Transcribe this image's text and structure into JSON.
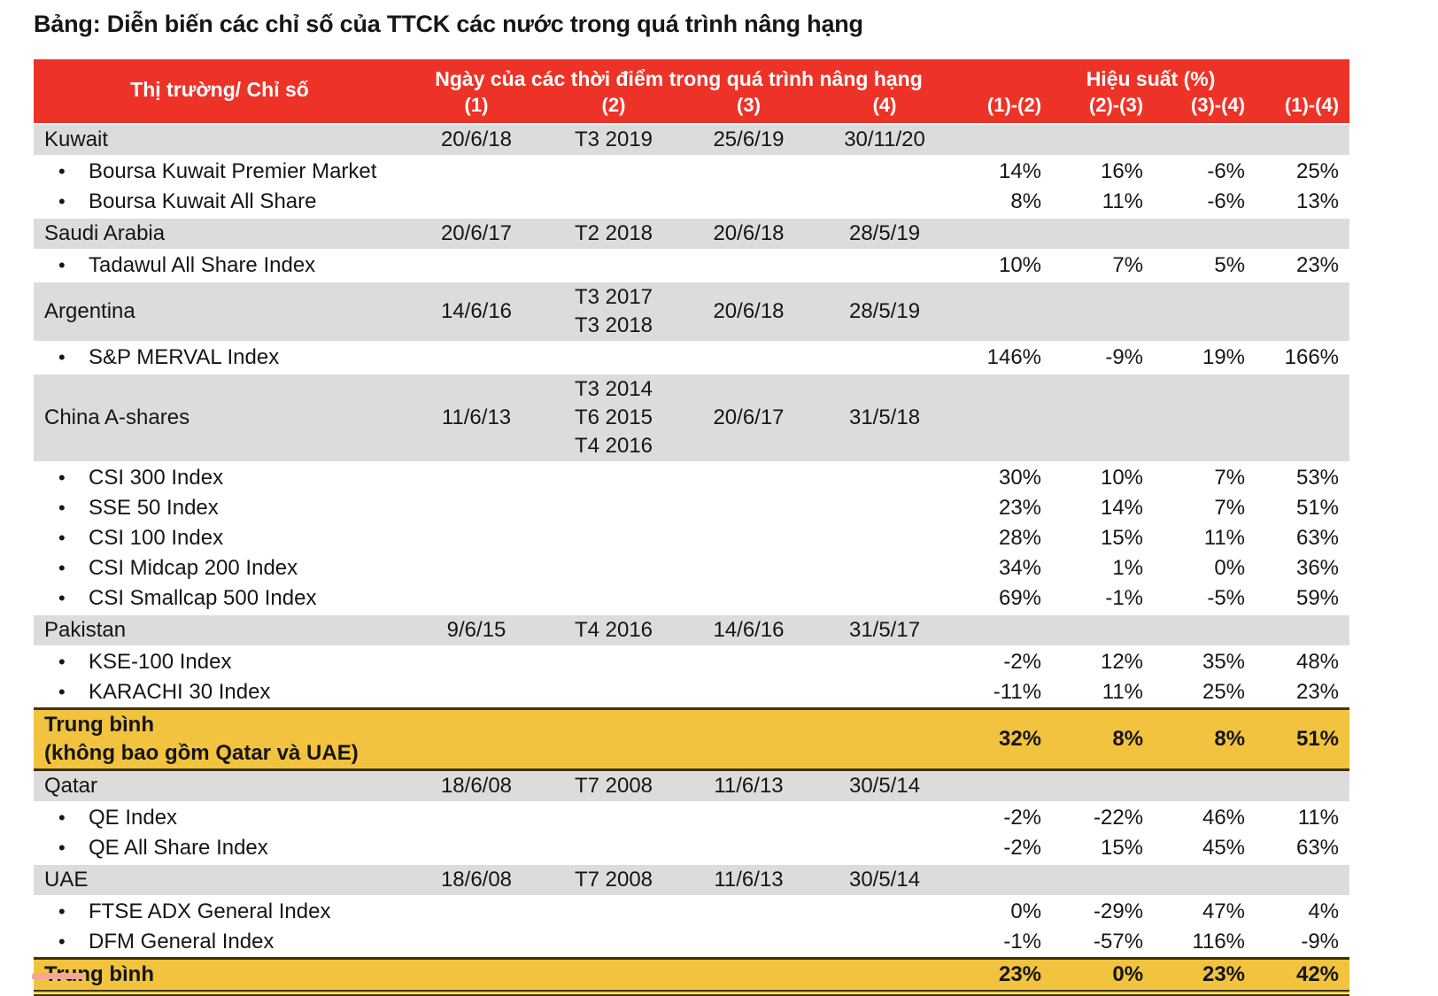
{
  "title": "Bảng: Diễn biến các chỉ số của TTCK các nước trong quá trình nâng hạng",
  "colors": {
    "header_bg": "#ED3328",
    "header_text": "#FFFFFF",
    "country_row_bg": "#DCDCDC",
    "summary_row_bg": "#F2C33E",
    "summary_border": "#40320A",
    "body_text": "#161616"
  },
  "table": {
    "bullet_glyph": "•",
    "header": {
      "market_col": "Thị trường/ Chỉ số",
      "dates_group": "Ngày của các thời điểm trong quá trình nâng hạng",
      "perf_group": "Hiệu suất (%)",
      "date_cols": [
        "(1)",
        "(2)",
        "(3)",
        "(4)"
      ],
      "perf_cols": [
        "(1)-(2)",
        "(2)-(3)",
        "(3)-(4)",
        "(1)-(4)"
      ]
    },
    "rows": [
      {
        "type": "country",
        "cells": [
          "Kuwait",
          "20/6/18",
          "T3 2019",
          "25/6/19",
          "30/11/20",
          "",
          "",
          "",
          ""
        ]
      },
      {
        "type": "index",
        "cells": [
          "Boursa Kuwait Premier Market",
          "",
          "",
          "",
          "",
          "14%",
          "16%",
          "-6%",
          "25%"
        ]
      },
      {
        "type": "index",
        "cells": [
          "Boursa Kuwait All Share",
          "",
          "",
          "",
          "",
          "8%",
          "11%",
          "-6%",
          "13%"
        ]
      },
      {
        "type": "country",
        "cells": [
          "Saudi Arabia",
          "20/6/17",
          "T2 2018",
          "20/6/18",
          "28/5/19",
          "",
          "",
          "",
          ""
        ]
      },
      {
        "type": "index",
        "cells": [
          "Tadawul All Share Index",
          "",
          "",
          "",
          "",
          "10%",
          "7%",
          "5%",
          "23%"
        ]
      },
      {
        "type": "country",
        "cells": [
          "Argentina",
          "14/6/16",
          "T3 2017\nT3 2018",
          "20/6/18",
          "28/5/19",
          "",
          "",
          "",
          ""
        ]
      },
      {
        "type": "index",
        "cells": [
          "S&P MERVAL Index",
          "",
          "",
          "",
          "",
          "146%",
          "-9%",
          "19%",
          "166%"
        ]
      },
      {
        "type": "country",
        "cells": [
          "China A-shares",
          "11/6/13",
          "T3 2014\nT6 2015\nT4 2016",
          "20/6/17",
          "31/5/18",
          "",
          "",
          "",
          ""
        ]
      },
      {
        "type": "index",
        "cells": [
          "CSI 300 Index",
          "",
          "",
          "",
          "",
          "30%",
          "10%",
          "7%",
          "53%"
        ]
      },
      {
        "type": "index",
        "cells": [
          "SSE 50 Index",
          "",
          "",
          "",
          "",
          "23%",
          "14%",
          "7%",
          "51%"
        ]
      },
      {
        "type": "index",
        "cells": [
          "CSI 100 Index",
          "",
          "",
          "",
          "",
          "28%",
          "15%",
          "11%",
          "63%"
        ]
      },
      {
        "type": "index",
        "cells": [
          "CSI Midcap 200 Index",
          "",
          "",
          "",
          "",
          "34%",
          "1%",
          "0%",
          "36%"
        ]
      },
      {
        "type": "index",
        "cells": [
          "CSI Smallcap 500 Index",
          "",
          "",
          "",
          "",
          "69%",
          "-1%",
          "-5%",
          "59%"
        ]
      },
      {
        "type": "country",
        "cells": [
          "Pakistan",
          "9/6/15",
          "T4 2016",
          "14/6/16",
          "31/5/17",
          "",
          "",
          "",
          ""
        ]
      },
      {
        "type": "index",
        "cells": [
          "KSE-100 Index",
          "",
          "",
          "",
          "",
          "-2%",
          "12%",
          "35%",
          "48%"
        ]
      },
      {
        "type": "index",
        "cells": [
          "KARACHI 30 Index",
          "",
          "",
          "",
          "",
          "-11%",
          "11%",
          "25%",
          "23%"
        ]
      },
      {
        "type": "summary",
        "cells": [
          "Trung bình\n(không bao gồm Qatar và UAE)",
          "",
          "",
          "",
          "",
          "32%",
          "8%",
          "8%",
          "51%"
        ]
      },
      {
        "type": "country",
        "cells": [
          "Qatar",
          "18/6/08",
          "T7 2008",
          "11/6/13",
          "30/5/14",
          "",
          "",
          "",
          ""
        ]
      },
      {
        "type": "index",
        "cells": [
          "QE Index",
          "",
          "",
          "",
          "",
          "-2%",
          "-22%",
          "46%",
          "11%"
        ]
      },
      {
        "type": "index",
        "cells": [
          "QE All Share Index",
          "",
          "",
          "",
          "",
          "-2%",
          "15%",
          "45%",
          "63%"
        ]
      },
      {
        "type": "country",
        "cells": [
          "UAE",
          "18/6/08",
          "T7 2008",
          "11/6/13",
          "30/5/14",
          "",
          "",
          "",
          ""
        ]
      },
      {
        "type": "index",
        "cells": [
          "FTSE ADX General Index",
          "",
          "",
          "",
          "",
          "0%",
          "-29%",
          "47%",
          "4%"
        ]
      },
      {
        "type": "index",
        "cells": [
          "DFM General Index",
          "",
          "",
          "",
          "",
          "-1%",
          "-57%",
          "116%",
          "-9%"
        ]
      },
      {
        "type": "summary",
        "cells": [
          "Trung bình",
          "",
          "",
          "",
          "",
          "23%",
          "0%",
          "23%",
          "42%"
        ]
      }
    ]
  }
}
